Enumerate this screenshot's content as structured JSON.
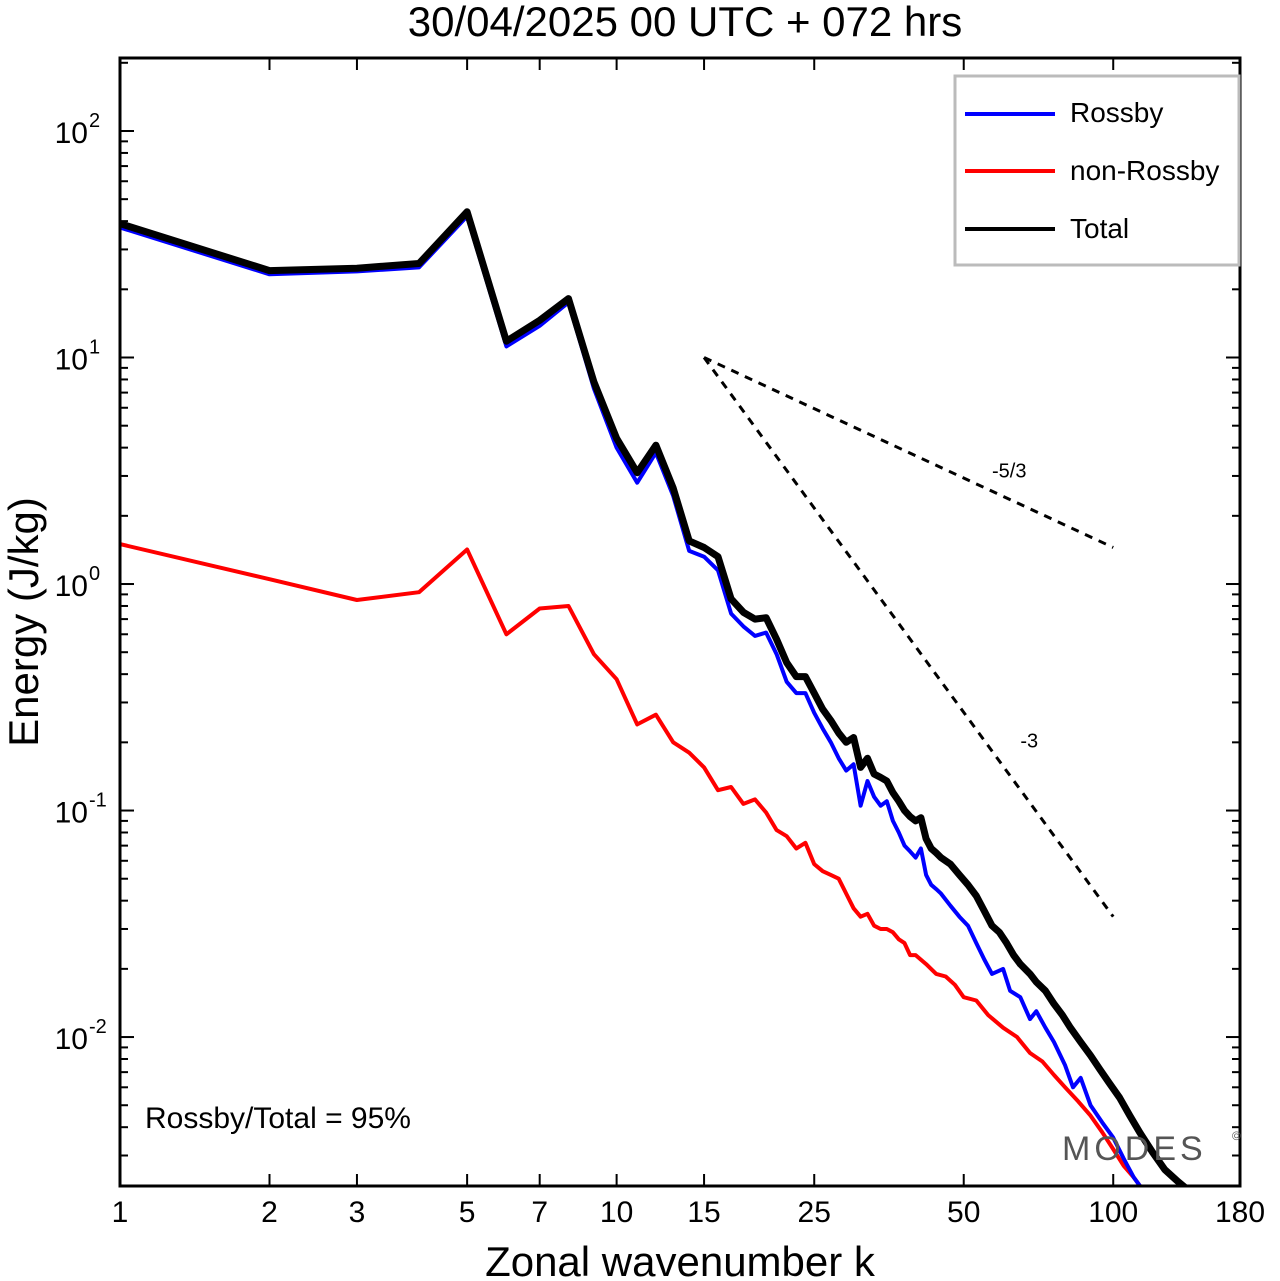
{
  "chart_data": {
    "type": "line",
    "title": "30/04/2025  00 UTC  + 072 hrs",
    "xlabel": "Zonal wavenumber k",
    "ylabel": "Energy (J/kg)",
    "x_scale": "log",
    "y_scale": "log",
    "xlim": [
      1,
      180
    ],
    "ylim": [
      0.0022,
      210
    ],
    "x_ticks": [
      1,
      2,
      3,
      5,
      7,
      10,
      15,
      25,
      50,
      100,
      180
    ],
    "x_tick_labels": [
      "1",
      "2",
      "3",
      "5",
      "7",
      "10",
      "15",
      "25",
      "50",
      "100",
      "180"
    ],
    "y_ticks": [
      {
        "value": 0.01,
        "base": "10",
        "exp": "-2"
      },
      {
        "value": 0.1,
        "base": "10",
        "exp": "-1"
      },
      {
        "value": 1,
        "base": "10",
        "exp": "0"
      },
      {
        "value": 10,
        "base": "10",
        "exp": "1"
      },
      {
        "value": 100,
        "base": "10",
        "exp": "2"
      }
    ],
    "grid": false,
    "legend_position": "top-right",
    "series": [
      {
        "name": "Rossby",
        "color": "#0000ff",
        "points": [
          [
            1,
            37.5
          ],
          [
            2,
            23.3
          ],
          [
            3,
            24.0
          ],
          [
            4,
            25.0
          ],
          [
            5,
            42.0
          ],
          [
            6,
            11.2
          ],
          [
            7,
            13.8
          ],
          [
            8,
            17.5
          ],
          [
            9,
            7.3
          ],
          [
            10,
            4.0
          ],
          [
            11,
            2.8
          ],
          [
            12,
            3.8
          ],
          [
            13,
            2.45
          ],
          [
            14,
            1.4
          ],
          [
            15,
            1.32
          ],
          [
            16,
            1.15
          ],
          [
            17,
            0.74
          ],
          [
            18,
            0.65
          ],
          [
            19,
            0.59
          ],
          [
            20,
            0.61
          ],
          [
            21,
            0.49
          ],
          [
            22,
            0.37
          ],
          [
            23,
            0.33
          ],
          [
            24,
            0.33
          ],
          [
            25,
            0.27
          ],
          [
            26,
            0.23
          ],
          [
            27,
            0.2
          ],
          [
            28,
            0.17
          ],
          [
            29,
            0.15
          ],
          [
            30,
            0.16
          ],
          [
            31,
            0.105
          ],
          [
            32,
            0.135
          ],
          [
            33,
            0.115
          ],
          [
            34,
            0.105
          ],
          [
            35,
            0.11
          ],
          [
            36,
            0.09
          ],
          [
            37,
            0.08
          ],
          [
            38,
            0.07
          ],
          [
            39,
            0.066
          ],
          [
            40,
            0.062
          ],
          [
            41,
            0.068
          ],
          [
            42,
            0.052
          ],
          [
            43,
            0.047
          ],
          [
            44,
            0.045
          ],
          [
            45,
            0.043
          ],
          [
            47,
            0.038
          ],
          [
            49,
            0.034
          ],
          [
            51,
            0.031
          ],
          [
            53,
            0.026
          ],
          [
            55,
            0.022
          ],
          [
            57,
            0.019
          ],
          [
            60,
            0.02
          ],
          [
            62,
            0.016
          ],
          [
            65,
            0.015
          ],
          [
            68,
            0.012
          ],
          [
            70,
            0.013
          ],
          [
            73,
            0.011
          ],
          [
            76,
            0.0095
          ],
          [
            80,
            0.0075
          ],
          [
            83,
            0.006
          ],
          [
            86,
            0.0066
          ],
          [
            90,
            0.005
          ],
          [
            95,
            0.0042
          ],
          [
            100,
            0.0036
          ],
          [
            105,
            0.0029
          ],
          [
            110,
            0.0024
          ],
          [
            115,
            0.0021
          ]
        ]
      },
      {
        "name": "non-Rossby",
        "color": "#ff0000",
        "points": [
          [
            1,
            1.5
          ],
          [
            2,
            1.05
          ],
          [
            3,
            0.85
          ],
          [
            4,
            0.92
          ],
          [
            5,
            1.42
          ],
          [
            6,
            0.6
          ],
          [
            7,
            0.78
          ],
          [
            8,
            0.8
          ],
          [
            9,
            0.49
          ],
          [
            10,
            0.38
          ],
          [
            11,
            0.24
          ],
          [
            12,
            0.265
          ],
          [
            13,
            0.2
          ],
          [
            14,
            0.18
          ],
          [
            15,
            0.155
          ],
          [
            16,
            0.123
          ],
          [
            17,
            0.127
          ],
          [
            18,
            0.107
          ],
          [
            19,
            0.112
          ],
          [
            20,
            0.098
          ],
          [
            21,
            0.082
          ],
          [
            22,
            0.077
          ],
          [
            23,
            0.068
          ],
          [
            24,
            0.072
          ],
          [
            25,
            0.058
          ],
          [
            26,
            0.054
          ],
          [
            27,
            0.052
          ],
          [
            28,
            0.05
          ],
          [
            29,
            0.043
          ],
          [
            30,
            0.037
          ],
          [
            31,
            0.034
          ],
          [
            32,
            0.035
          ],
          [
            33,
            0.031
          ],
          [
            34,
            0.03
          ],
          [
            35,
            0.03
          ],
          [
            36,
            0.029
          ],
          [
            37,
            0.027
          ],
          [
            38,
            0.026
          ],
          [
            39,
            0.023
          ],
          [
            40,
            0.023
          ],
          [
            42,
            0.021
          ],
          [
            44,
            0.019
          ],
          [
            46,
            0.0185
          ],
          [
            48,
            0.017
          ],
          [
            50,
            0.015
          ],
          [
            53,
            0.0145
          ],
          [
            56,
            0.0125
          ],
          [
            60,
            0.011
          ],
          [
            64,
            0.01
          ],
          [
            68,
            0.0085
          ],
          [
            72,
            0.0078
          ],
          [
            76,
            0.0068
          ],
          [
            80,
            0.006
          ],
          [
            85,
            0.0052
          ],
          [
            90,
            0.0045
          ],
          [
            95,
            0.0038
          ],
          [
            100,
            0.0032
          ],
          [
            105,
            0.0027
          ],
          [
            110,
            0.0024
          ],
          [
            115,
            0.0021
          ]
        ]
      },
      {
        "name": "Total",
        "color": "#000000",
        "points": [
          [
            1,
            39.0
          ],
          [
            2,
            24.2
          ],
          [
            3,
            24.8
          ],
          [
            4,
            26.0
          ],
          [
            5,
            44.0
          ],
          [
            6,
            11.8
          ],
          [
            7,
            14.6
          ],
          [
            8,
            18.2
          ],
          [
            9,
            7.8
          ],
          [
            10,
            4.4
          ],
          [
            11,
            3.1
          ],
          [
            12,
            4.1
          ],
          [
            13,
            2.65
          ],
          [
            14,
            1.55
          ],
          [
            15,
            1.45
          ],
          [
            16,
            1.32
          ],
          [
            17,
            0.86
          ],
          [
            18,
            0.75
          ],
          [
            19,
            0.7
          ],
          [
            20,
            0.71
          ],
          [
            21,
            0.57
          ],
          [
            22,
            0.45
          ],
          [
            23,
            0.39
          ],
          [
            24,
            0.39
          ],
          [
            25,
            0.33
          ],
          [
            26,
            0.28
          ],
          [
            27,
            0.25
          ],
          [
            28,
            0.22
          ],
          [
            29,
            0.2
          ],
          [
            30,
            0.21
          ],
          [
            31,
            0.155
          ],
          [
            32,
            0.17
          ],
          [
            33,
            0.145
          ],
          [
            34,
            0.14
          ],
          [
            35,
            0.135
          ],
          [
            36,
            0.12
          ],
          [
            37,
            0.11
          ],
          [
            38,
            0.1
          ],
          [
            39,
            0.094
          ],
          [
            40,
            0.09
          ],
          [
            41,
            0.093
          ],
          [
            42,
            0.075
          ],
          [
            43,
            0.068
          ],
          [
            44,
            0.065
          ],
          [
            45,
            0.062
          ],
          [
            47,
            0.058
          ],
          [
            49,
            0.052
          ],
          [
            51,
            0.047
          ],
          [
            53,
            0.042
          ],
          [
            55,
            0.036
          ],
          [
            57,
            0.031
          ],
          [
            59,
            0.029
          ],
          [
            61,
            0.026
          ],
          [
            63,
            0.023
          ],
          [
            65,
            0.021
          ],
          [
            68,
            0.019
          ],
          [
            70,
            0.0175
          ],
          [
            73,
            0.016
          ],
          [
            76,
            0.014
          ],
          [
            79,
            0.0125
          ],
          [
            82,
            0.011
          ],
          [
            86,
            0.0095
          ],
          [
            90,
            0.0083
          ],
          [
            94,
            0.0072
          ],
          [
            98,
            0.0063
          ],
          [
            103,
            0.0054
          ],
          [
            108,
            0.0045
          ],
          [
            113,
            0.0038
          ],
          [
            120,
            0.0031
          ],
          [
            127,
            0.0026
          ],
          [
            135,
            0.0023
          ],
          [
            142,
            0.0021
          ]
        ]
      }
    ],
    "reference_lines": [
      {
        "label": "-5/3",
        "start": [
          15,
          10
        ],
        "end": [
          100,
          1.45
        ],
        "label_at": [
          57,
          2.95
        ]
      },
      {
        "label": "-3",
        "start": [
          15,
          10
        ],
        "end": [
          100,
          0.034
        ],
        "label_at": [
          65,
          0.19
        ]
      }
    ],
    "annotation": "Rossby/Total = 95%",
    "watermark": "MODES",
    "watermark_mark": "©"
  }
}
